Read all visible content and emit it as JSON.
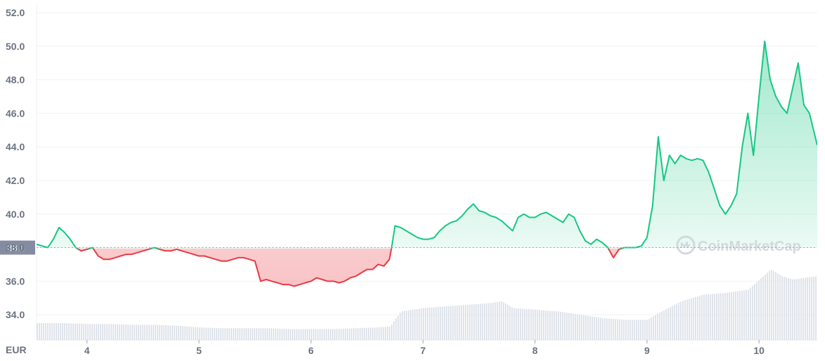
{
  "chart_data": {
    "type": "area",
    "currency_label": "EUR",
    "reference_value": 38.0,
    "reference_label": "38.0",
    "ylim": [
      32.5,
      52.5
    ],
    "y_ticks": [
      {
        "value": 52.0,
        "label": "52.0"
      },
      {
        "value": 50.0,
        "label": "50.0"
      },
      {
        "value": 48.0,
        "label": "48.0"
      },
      {
        "value": 46.0,
        "label": "46.0"
      },
      {
        "value": 44.0,
        "label": "44.0"
      },
      {
        "value": 42.0,
        "label": "42.0"
      },
      {
        "value": 40.0,
        "label": "40.0"
      },
      {
        "value": 38.0,
        "label": "38.0"
      },
      {
        "value": 36.0,
        "label": "36.0"
      },
      {
        "value": 34.0,
        "label": "34.0"
      }
    ],
    "xlim": [
      3.55,
      10.52
    ],
    "x_ticks": [
      {
        "value": 4,
        "label": "4"
      },
      {
        "value": 5,
        "label": "5"
      },
      {
        "value": 6,
        "label": "6"
      },
      {
        "value": 7,
        "label": "7"
      },
      {
        "value": 8,
        "label": "8"
      },
      {
        "value": 9,
        "label": "9"
      },
      {
        "value": 10,
        "label": "10"
      }
    ],
    "price_series": {
      "x": [
        3.55,
        3.6,
        3.65,
        3.7,
        3.75,
        3.8,
        3.85,
        3.9,
        3.95,
        4.0,
        4.05,
        4.1,
        4.15,
        4.2,
        4.25,
        4.3,
        4.35,
        4.4,
        4.45,
        4.5,
        4.55,
        4.6,
        4.65,
        4.7,
        4.75,
        4.8,
        4.85,
        4.9,
        4.95,
        5.0,
        5.05,
        5.1,
        5.15,
        5.2,
        5.25,
        5.3,
        5.35,
        5.4,
        5.45,
        5.5,
        5.55,
        5.6,
        5.65,
        5.7,
        5.75,
        5.8,
        5.85,
        5.9,
        5.95,
        6.0,
        6.05,
        6.1,
        6.15,
        6.2,
        6.25,
        6.3,
        6.35,
        6.4,
        6.45,
        6.5,
        6.55,
        6.6,
        6.65,
        6.7,
        6.72,
        6.75,
        6.8,
        6.85,
        6.9,
        6.95,
        7.0,
        7.05,
        7.1,
        7.15,
        7.2,
        7.25,
        7.3,
        7.35,
        7.4,
        7.45,
        7.5,
        7.55,
        7.6,
        7.65,
        7.7,
        7.75,
        7.8,
        7.85,
        7.9,
        7.95,
        8.0,
        8.05,
        8.1,
        8.15,
        8.2,
        8.25,
        8.3,
        8.35,
        8.4,
        8.45,
        8.5,
        8.55,
        8.6,
        8.65,
        8.7,
        8.75,
        8.8,
        8.85,
        8.9,
        8.95,
        9.0,
        9.05,
        9.1,
        9.15,
        9.2,
        9.25,
        9.3,
        9.35,
        9.4,
        9.45,
        9.5,
        9.55,
        9.6,
        9.65,
        9.7,
        9.75,
        9.8,
        9.85,
        9.9,
        9.95,
        10.0,
        10.05,
        10.1,
        10.15,
        10.2,
        10.25,
        10.3,
        10.35,
        10.4,
        10.45,
        10.52
      ],
      "y": [
        38.2,
        38.1,
        38.0,
        38.5,
        39.2,
        38.9,
        38.5,
        38.0,
        37.8,
        37.9,
        38.0,
        37.5,
        37.3,
        37.3,
        37.4,
        37.5,
        37.6,
        37.6,
        37.7,
        37.8,
        37.9,
        38.0,
        37.9,
        37.8,
        37.8,
        37.9,
        37.8,
        37.7,
        37.6,
        37.5,
        37.5,
        37.4,
        37.3,
        37.2,
        37.2,
        37.3,
        37.4,
        37.4,
        37.3,
        37.2,
        36.0,
        36.1,
        36.0,
        35.9,
        35.8,
        35.8,
        35.7,
        35.8,
        35.9,
        36.0,
        36.2,
        36.1,
        36.0,
        36.0,
        35.9,
        36.0,
        36.2,
        36.3,
        36.5,
        36.7,
        36.7,
        37.0,
        36.9,
        37.3,
        38.0,
        39.3,
        39.2,
        39.0,
        38.8,
        38.6,
        38.5,
        38.5,
        38.6,
        39.0,
        39.3,
        39.5,
        39.6,
        39.9,
        40.3,
        40.6,
        40.2,
        40.1,
        39.9,
        39.8,
        39.6,
        39.3,
        39.0,
        39.8,
        40.0,
        39.8,
        39.8,
        40.0,
        40.1,
        39.9,
        39.7,
        39.5,
        40.0,
        39.8,
        39.0,
        38.4,
        38.2,
        38.5,
        38.3,
        38.0,
        37.4,
        37.9,
        38.0,
        38.0,
        38.0,
        38.1,
        38.6,
        40.5,
        44.6,
        42.0,
        43.5,
        43.0,
        43.5,
        43.3,
        43.2,
        43.3,
        43.2,
        42.5,
        41.5,
        40.5,
        40.0,
        40.5,
        41.2,
        44.0,
        46.0,
        43.5,
        47.0,
        50.3,
        48.0,
        47.0,
        46.4,
        46.0,
        47.5,
        49.0,
        46.5,
        46.0,
        44.1
      ]
    },
    "volume_series": {
      "x": [
        3.55,
        3.8,
        4.0,
        4.2,
        4.4,
        4.6,
        4.8,
        5.0,
        5.2,
        5.4,
        5.6,
        5.8,
        6.0,
        6.2,
        6.4,
        6.6,
        6.7,
        6.8,
        7.0,
        7.2,
        7.4,
        7.6,
        7.7,
        7.8,
        8.0,
        8.2,
        8.4,
        8.6,
        8.8,
        9.0,
        9.1,
        9.3,
        9.5,
        9.7,
        9.9,
        10.0,
        10.1,
        10.2,
        10.3,
        10.4,
        10.52
      ],
      "y": [
        1.0,
        1.0,
        0.95,
        0.95,
        0.9,
        0.9,
        0.85,
        0.75,
        0.7,
        0.7,
        0.7,
        0.65,
        0.65,
        0.65,
        0.7,
        0.75,
        0.8,
        1.7,
        1.9,
        2.0,
        2.1,
        2.2,
        2.3,
        1.9,
        1.8,
        1.7,
        1.5,
        1.3,
        1.2,
        1.2,
        1.6,
        2.3,
        2.7,
        2.8,
        3.0,
        3.6,
        4.2,
        3.8,
        3.6,
        3.7,
        3.8
      ]
    },
    "colors": {
      "up_line": "#16c784",
      "down_line": "#ea3943",
      "up_fill": "#16c784",
      "down_fill": "#ea3943",
      "volume": "#dfe3ea",
      "grid": "#eff2f5",
      "reference_line": "#a0a6b1",
      "reference_badge": "#858ca2"
    }
  },
  "watermark": {
    "text": "CoinMarketCap",
    "icon": "coinmarketcap-logo-icon"
  }
}
